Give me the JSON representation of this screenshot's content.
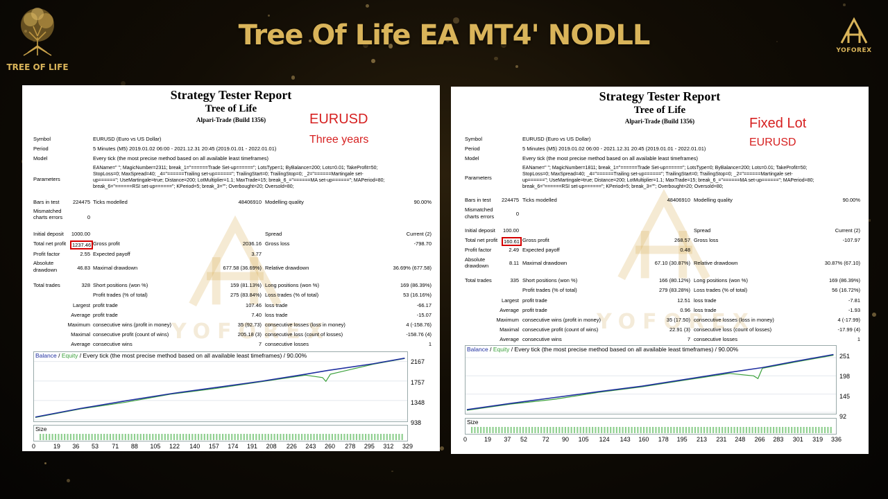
{
  "header": {
    "title": "Tree Of Life EA MT4' NODLL",
    "left_brand": "TREE OF LIFE",
    "right_brand": "YOFOREX"
  },
  "watermark_text": "YOFOREX",
  "colors": {
    "gold": "#d9b45a",
    "balance": "#2030a0",
    "equity": "#3aa03a",
    "note": "#d62020",
    "highlight": "#d40000"
  },
  "reports": [
    {
      "title": "Strategy Tester Report",
      "subtitle": "Tree of Life",
      "broker": "Alpari-Trade (Build 1356)",
      "note1": "EURUSD",
      "note2": "Three years",
      "symbol_label": "Symbol",
      "symbol": "EURUSD (Euro vs US Dollar)",
      "period_label": "Period",
      "period": "5 Minutes (M5) 2019.01.02 06:00 - 2021.12.31 20:45 (2019.01.01 - 2022.01.01)",
      "model_label": "Model",
      "model": "Every tick (the most precise method based on all available least timeframes)",
      "parameters_label": "Parameters",
      "params": [
        "EAName=\" \"; MagicNumber=2311; break_1=\"======Trade Set-up======\"; LotsType=1; ByBalance=200; Lots=0.01; TakeProfit=50;",
        "StopLoss=0; MaxSpread=40; _4=\"======Trailing set-up======\"; TrailingStart=0; TrailingStop=0; _2=\"======Martingale set-",
        "up======\"; UseMartingale=true; Distance=200; LotMultiplier=1.1; MaxTrade=15; break_6_=\"======MA set-up======\"; MAPeriod=80;",
        "break_6=\"======RSI set-up======\"; KPeriod=5; break_3=\"\"; Overbought=20; Oversold=80;"
      ],
      "bars_label": "Bars in test",
      "bars": "224475",
      "ticks_label": "Ticks modelled",
      "ticks": "48406910",
      "quality_label": "Modelling quality",
      "quality": "90.00%",
      "mismatch_label_1": "Mismatched",
      "mismatch_label_2": "charts errors",
      "mismatch": "0",
      "initial_deposit_label": "Initial deposit",
      "initial_deposit": "1000.00",
      "spread_label": "Spread",
      "spread": "Current (2)",
      "net_profit_label": "Total net profit",
      "net_profit": "1237.46",
      "gross_profit_label": "Gross profit",
      "gross_profit": "2036.16",
      "gross_loss_label": "Gross loss",
      "gross_loss": "-798.70",
      "profit_factor_label": "Profit factor",
      "profit_factor": "2.55",
      "expected_payoff_label": "Expected payoff",
      "expected_payoff": "3.77",
      "abs_dd_label_1": "Absolute",
      "abs_dd_label_2": "drawdown",
      "abs_dd": "46.83",
      "max_dd_label": "Maximal drawdown",
      "max_dd": "677.58 (36.69%)",
      "rel_dd_label": "Relative drawdown",
      "rel_dd": "36.69% (677.58)",
      "total_trades_label": "Total trades",
      "total_trades": "328",
      "short_label": "Short positions (won %)",
      "short": "159 (81.13%)",
      "long_label": "Long positions (won %)",
      "long": "169 (86.39%)",
      "profit_trades_label": "Profit trades (% of total)",
      "profit_trades": "275 (83.84%)",
      "loss_trades_label": "Loss trades (% of total)",
      "loss_trades": "53 (16.16%)",
      "largest_label": "Largest",
      "average_label": "Average",
      "maximum_label": "Maximum",
      "maximal_label": "Maximal",
      "average2_label": "Average",
      "profit_trade_label": "profit trade",
      "loss_trade_label": "loss trade",
      "largest_profit": "107.46",
      "largest_loss": "-66.17",
      "average_profit": "7.40",
      "average_loss": "-15.07",
      "cons_wins_money_label": "consecutive wins (profit in money)",
      "cons_wins_money": "35 (92.73)",
      "cons_losses_money_label": "consecutive losses (loss in money)",
      "cons_losses_money": "4 (-158.76)",
      "cons_profit_count_label": "consecutive profit (count of wins)",
      "cons_profit_count": "205.18 (3)",
      "cons_loss_count_label": "consecutive loss (count of losses)",
      "cons_loss_count": "-158.76 (4)",
      "avg_cons_wins_label": "consecutive wins",
      "avg_cons_wins": "7",
      "avg_cons_losses_label": "consecutive losses",
      "avg_cons_losses": "1",
      "graph": {
        "legend_balance": "Balance",
        "legend_sep": " / ",
        "legend_equity": "Equity",
        "legend_rest": " / Every tick (the most precise method based on all available least timeframes) / 90.00%",
        "yticks": [
          "2167",
          "1757",
          "1348",
          "938"
        ],
        "size_label": "Size",
        "xticks": [
          "0",
          "19",
          "36",
          "53",
          "71",
          "88",
          "105",
          "122",
          "140",
          "157",
          "174",
          "191",
          "208",
          "226",
          "243",
          "260",
          "278",
          "295",
          "312",
          "329"
        ]
      }
    },
    {
      "title": "Strategy Tester Report",
      "subtitle": "Tree of Life",
      "broker": "Alpari-Trade (Build 1356)",
      "note1": "Fixed Lot",
      "note2": "EURUSD",
      "symbol_label": "Symbol",
      "symbol": "EURUSD (Euro vs US Dollar)",
      "period_label": "Period",
      "period": "5 Minutes (M5) 2019.01.02 06:00 - 2021.12.31 20:45 (2019.01.01 - 2022.01.01)",
      "model_label": "Model",
      "model": "Every tick (the most precise method based on all available least timeframes)",
      "parameters_label": "Parameters",
      "params": [
        "EAName=\" \"; MagicNumber=1811; break_1=\"======Trade Set-up======\"; LotsType=0; ByBalance=200; Lots=0.01; TakeProfit=50;",
        "StopLoss=0; MaxSpread=40; _4=\"======Trailing set-up======\"; TrailingStart=0; TrailingStop=0; _2=\"======Martingale set-",
        "up======\"; UseMartingale=true; Distance=200; LotMultiplier=1.1; MaxTrade=15; break_6_=\"======MA set-up======\"; MAPeriod=80;",
        "break_6=\"======RSI set-up======\"; KPeriod=5; break_3=\"\"; Overbought=20; Oversold=80;"
      ],
      "bars_label": "Bars in test",
      "bars": "224475",
      "ticks_label": "Ticks modelled",
      "ticks": "48406910",
      "quality_label": "Modelling quality",
      "quality": "90.00%",
      "mismatch_label_1": "Mismatched",
      "mismatch_label_2": "charts errors",
      "mismatch": "0",
      "initial_deposit_label": "Initial deposit",
      "initial_deposit": "100.00",
      "spread_label": "Spread",
      "spread": "Current (2)",
      "net_profit_label": "Total net profit",
      "net_profit": "160.61",
      "gross_profit_label": "Gross profit",
      "gross_profit": "268.57",
      "gross_loss_label": "Gross loss",
      "gross_loss": "-107.97",
      "profit_factor_label": "Profit factor",
      "profit_factor": "2.49",
      "expected_payoff_label": "Expected payoff",
      "expected_payoff": "0.48",
      "abs_dd_label_1": "Absolute",
      "abs_dd_label_2": "drawdown",
      "abs_dd": "8.11",
      "max_dd_label": "Maximal drawdown",
      "max_dd": "67.10 (30.87%)",
      "rel_dd_label": "Relative drawdown",
      "rel_dd": "30.87% (67.10)",
      "total_trades_label": "Total trades",
      "total_trades": "335",
      "short_label": "Short positions (won %)",
      "short": "166 (80.12%)",
      "long_label": "Long positions (won %)",
      "long": "169 (86.39%)",
      "profit_trades_label": "Profit trades (% of total)",
      "profit_trades": "279 (83.28%)",
      "loss_trades_label": "Loss trades (% of total)",
      "loss_trades": "56 (16.72%)",
      "largest_label": "Largest",
      "average_label": "Average",
      "maximum_label": "Maximum",
      "maximal_label": "Maximal",
      "average2_label": "Average",
      "profit_trade_label": "profit trade",
      "loss_trade_label": "loss trade",
      "largest_profit": "12.51",
      "largest_loss": "-7.81",
      "average_profit": "0.96",
      "average_loss": "-1.93",
      "cons_wins_money_label": "consecutive wins (profit in money)",
      "cons_wins_money": "35 (17.50)",
      "cons_losses_money_label": "consecutive losses (loss in money)",
      "cons_losses_money": "4 (-17.99)",
      "cons_profit_count_label": "consecutive profit (count of wins)",
      "cons_profit_count": "22.91 (3)",
      "cons_loss_count_label": "consecutive loss (count of losses)",
      "cons_loss_count": "-17.99 (4)",
      "avg_cons_wins_label": "consecutive wins",
      "avg_cons_wins": "7",
      "avg_cons_losses_label": "consecutive losses",
      "avg_cons_losses": "1",
      "graph": {
        "legend_balance": "Balance",
        "legend_sep": " / ",
        "legend_equity": "Equity",
        "legend_rest": " / Every tick (the most precise method based on all available least timeframes) / 90.00%",
        "yticks": [
          "251",
          "198",
          "145",
          "92"
        ],
        "size_label": "Size",
        "xticks": [
          "0",
          "19",
          "37",
          "52",
          "72",
          "90",
          "105",
          "124",
          "143",
          "160",
          "178",
          "195",
          "213",
          "231",
          "248",
          "266",
          "283",
          "301",
          "319",
          "336"
        ]
      }
    }
  ],
  "chart_data": [
    {
      "type": "line",
      "title": "Every tick (the most precise method based on all available least timeframes) / 90.00%",
      "xlabel": "",
      "ylabel": "",
      "ylim": [
        938,
        2220
      ],
      "x_ticks": [
        0,
        19,
        36,
        53,
        71,
        88,
        105,
        122,
        140,
        157,
        174,
        191,
        208,
        226,
        243,
        260,
        278,
        295,
        312,
        329
      ],
      "y_ticks": [
        2167,
        1757,
        1348,
        938
      ],
      "series": [
        {
          "name": "Balance",
          "x": [
            0,
            40,
            80,
            120,
            160,
            200,
            240,
            260,
            300,
            328
          ],
          "y": [
            1000,
            1180,
            1340,
            1490,
            1620,
            1750,
            1900,
            1980,
            2120,
            2237
          ]
        },
        {
          "name": "Equity",
          "x": [
            0,
            40,
            80,
            120,
            160,
            200,
            240,
            255,
            258,
            262,
            300,
            328
          ],
          "y": [
            990,
            1170,
            1310,
            1480,
            1600,
            1740,
            1880,
            1830,
            1750,
            1900,
            2110,
            2230
          ]
        }
      ]
    },
    {
      "type": "line",
      "title": "Every tick (the most precise method based on all available least timeframes) / 90.00%",
      "xlabel": "",
      "ylabel": "",
      "ylim": [
        92,
        265
      ],
      "x_ticks": [
        0,
        19,
        37,
        52,
        72,
        90,
        105,
        124,
        143,
        160,
        178,
        195,
        213,
        231,
        248,
        266,
        283,
        301,
        319,
        336
      ],
      "y_ticks": [
        251,
        198,
        145,
        92
      ],
      "series": [
        {
          "name": "Balance",
          "x": [
            0,
            40,
            80,
            120,
            160,
            200,
            240,
            270,
            300,
            335
          ],
          "y": [
            100,
            118,
            135,
            152,
            168,
            188,
            208,
            222,
            240,
            260
          ]
        },
        {
          "name": "Equity",
          "x": [
            0,
            40,
            80,
            120,
            160,
            200,
            240,
            262,
            266,
            270,
            300,
            335
          ],
          "y": [
            98,
            116,
            130,
            150,
            166,
            186,
            205,
            198,
            190,
            220,
            238,
            258
          ]
        }
      ]
    }
  ]
}
